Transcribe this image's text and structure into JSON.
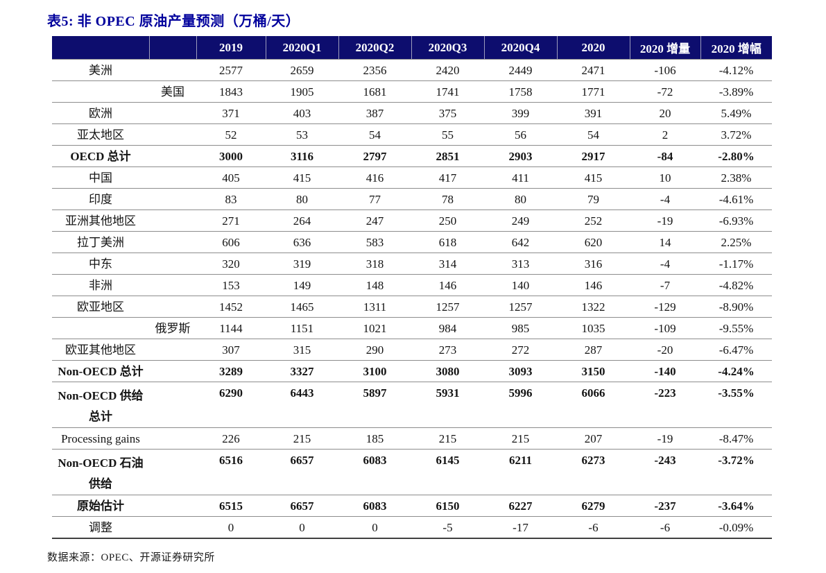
{
  "title": "表5:  非 OPEC 原油产量预测（万桶/天）",
  "source": "数据来源：OPEC、开源证券研究所",
  "colors": {
    "title_navy": "#00009c",
    "header_bg": "#0d0d6e",
    "header_text": "#ffffff",
    "row_line": "#8c8c8c",
    "body_text": "#141414"
  },
  "table": {
    "columns": [
      "2019",
      "2020Q1",
      "2020Q2",
      "2020Q3",
      "2020Q4",
      "2020",
      "2020 增量",
      "2020 增幅"
    ],
    "rows": [
      {
        "region": "美洲",
        "sub": "",
        "values": [
          "2577",
          "2659",
          "2356",
          "2420",
          "2449",
          "2471",
          "-106",
          "-4.12%"
        ],
        "bold": false,
        "tall": false
      },
      {
        "region": "",
        "sub": "美国",
        "values": [
          "1843",
          "1905",
          "1681",
          "1741",
          "1758",
          "1771",
          "-72",
          "-3.89%"
        ],
        "bold": false,
        "tall": false
      },
      {
        "region": "欧洲",
        "sub": "",
        "values": [
          "371",
          "403",
          "387",
          "375",
          "399",
          "391",
          "20",
          "5.49%"
        ],
        "bold": false,
        "tall": false
      },
      {
        "region": "亚太地区",
        "sub": "",
        "values": [
          "52",
          "53",
          "54",
          "55",
          "56",
          "54",
          "2",
          "3.72%"
        ],
        "bold": false,
        "tall": false
      },
      {
        "region": "OECD 总计",
        "sub": "",
        "values": [
          "3000",
          "3116",
          "2797",
          "2851",
          "2903",
          "2917",
          "-84",
          "-2.80%"
        ],
        "bold": true,
        "tall": false
      },
      {
        "region": "中国",
        "sub": "",
        "values": [
          "405",
          "415",
          "416",
          "417",
          "411",
          "415",
          "10",
          "2.38%"
        ],
        "bold": false,
        "tall": false
      },
      {
        "region": "印度",
        "sub": "",
        "values": [
          "83",
          "80",
          "77",
          "78",
          "80",
          "79",
          "-4",
          "-4.61%"
        ],
        "bold": false,
        "tall": false
      },
      {
        "region": "亚洲其他地区",
        "sub": "",
        "values": [
          "271",
          "264",
          "247",
          "250",
          "249",
          "252",
          "-19",
          "-6.93%"
        ],
        "bold": false,
        "tall": false
      },
      {
        "region": "拉丁美洲",
        "sub": "",
        "values": [
          "606",
          "636",
          "583",
          "618",
          "642",
          "620",
          "14",
          "2.25%"
        ],
        "bold": false,
        "tall": false
      },
      {
        "region": "中东",
        "sub": "",
        "values": [
          "320",
          "319",
          "318",
          "314",
          "313",
          "316",
          "-4",
          "-1.17%"
        ],
        "bold": false,
        "tall": false
      },
      {
        "region": "非洲",
        "sub": "",
        "values": [
          "153",
          "149",
          "148",
          "146",
          "140",
          "146",
          "-7",
          "-4.82%"
        ],
        "bold": false,
        "tall": false
      },
      {
        "region": "欧亚地区",
        "sub": "",
        "values": [
          "1452",
          "1465",
          "1311",
          "1257",
          "1257",
          "1322",
          "-129",
          "-8.90%"
        ],
        "bold": false,
        "tall": false
      },
      {
        "region": "",
        "sub": "俄罗斯",
        "values": [
          "1144",
          "1151",
          "1021",
          "984",
          "985",
          "1035",
          "-109",
          "-9.55%"
        ],
        "bold": false,
        "tall": false
      },
      {
        "region": "欧亚其他地区",
        "sub": "",
        "values": [
          "307",
          "315",
          "290",
          "273",
          "272",
          "287",
          "-20",
          "-6.47%"
        ],
        "bold": false,
        "tall": false
      },
      {
        "region": "Non-OECD 总计",
        "sub": "",
        "values": [
          "3289",
          "3327",
          "3100",
          "3080",
          "3093",
          "3150",
          "-140",
          "-4.24%"
        ],
        "bold": true,
        "tall": false
      },
      {
        "region": "Non-OECD 供给\n总计",
        "sub": "",
        "values": [
          "6290",
          "6443",
          "5897",
          "5931",
          "5996",
          "6066",
          "-223",
          "-3.55%"
        ],
        "bold": true,
        "tall": true
      },
      {
        "region": "Processing gains",
        "sub": "",
        "values": [
          "226",
          "215",
          "185",
          "215",
          "215",
          "207",
          "-19",
          "-8.47%"
        ],
        "bold": false,
        "tall": false
      },
      {
        "region": "Non-OECD 石油\n供给",
        "sub": "",
        "values": [
          "6516",
          "6657",
          "6083",
          "6145",
          "6211",
          "6273",
          "-243",
          "-3.72%"
        ],
        "bold": true,
        "tall": true
      },
      {
        "region": "原始估计",
        "sub": "",
        "values": [
          "6515",
          "6657",
          "6083",
          "6150",
          "6227",
          "6279",
          "-237",
          "-3.64%"
        ],
        "bold": true,
        "tall": false
      },
      {
        "region": "调整",
        "sub": "",
        "values": [
          "0",
          "0",
          "0",
          "-5",
          "-17",
          "-6",
          "-6",
          "-0.09%"
        ],
        "bold": false,
        "tall": false
      }
    ]
  }
}
